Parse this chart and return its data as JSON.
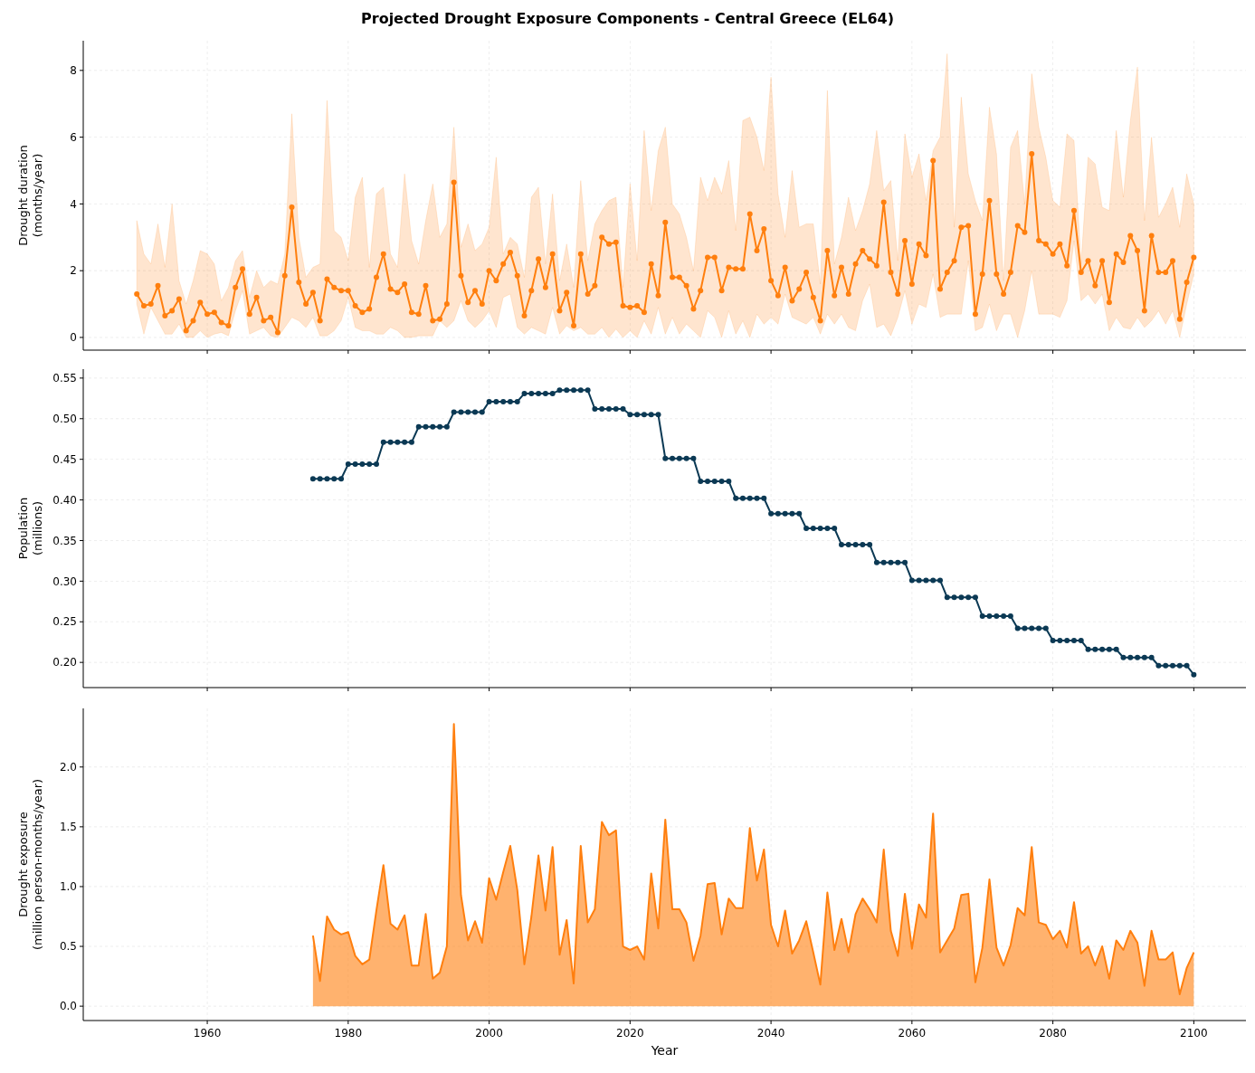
{
  "chart_data": [
    {
      "type": "line",
      "title": "Projected Drought Exposure Components - Central Greece (EL64)",
      "ylabel": "Drought duration\n(months/year)",
      "marker": "circle",
      "grid": true,
      "tick_labels": "y",
      "xlim": [
        1942.4,
        2107.4
      ],
      "xticks": [
        1960,
        1980,
        2000,
        2020,
        2040,
        2060,
        2080,
        2100
      ],
      "ylim": [
        -0.38,
        8.89
      ],
      "yticks": [
        0,
        2,
        4,
        6,
        8
      ],
      "x": [
        1950,
        1951,
        1952,
        1953,
        1954,
        1955,
        1956,
        1957,
        1958,
        1959,
        1960,
        1961,
        1962,
        1963,
        1964,
        1965,
        1966,
        1967,
        1968,
        1969,
        1970,
        1971,
        1972,
        1973,
        1974,
        1975,
        1976,
        1977,
        1978,
        1979,
        1980,
        1981,
        1982,
        1983,
        1984,
        1985,
        1986,
        1987,
        1988,
        1989,
        1990,
        1991,
        1992,
        1993,
        1994,
        1995,
        1996,
        1997,
        1998,
        1999,
        2000,
        2001,
        2002,
        2003,
        2004,
        2005,
        2006,
        2007,
        2008,
        2009,
        2010,
        2011,
        2012,
        2013,
        2014,
        2015,
        2016,
        2017,
        2018,
        2019,
        2020,
        2021,
        2022,
        2023,
        2024,
        2025,
        2026,
        2027,
        2028,
        2029,
        2030,
        2031,
        2032,
        2033,
        2034,
        2035,
        2036,
        2037,
        2038,
        2039,
        2040,
        2041,
        2042,
        2043,
        2044,
        2045,
        2046,
        2047,
        2048,
        2049,
        2050,
        2051,
        2052,
        2053,
        2054,
        2055,
        2056,
        2057,
        2058,
        2059,
        2060,
        2061,
        2062,
        2063,
        2064,
        2065,
        2066,
        2067,
        2068,
        2069,
        2070,
        2071,
        2072,
        2073,
        2074,
        2075,
        2076,
        2077,
        2078,
        2079,
        2080,
        2081,
        2082,
        2083,
        2084,
        2085,
        2086,
        2087,
        2088,
        2089,
        2090,
        2091,
        2092,
        2093,
        2094,
        2095,
        2096,
        2097,
        2098,
        2099,
        2100
      ],
      "series": [
        {
          "color": "#ff7f0e",
          "values": [
            1.3,
            0.95,
            1.0,
            1.55,
            0.65,
            0.8,
            1.15,
            0.2,
            0.5,
            1.05,
            0.7,
            0.75,
            0.45,
            0.35,
            1.5,
            2.05,
            0.7,
            1.2,
            0.5,
            0.6,
            0.15,
            1.85,
            3.9,
            1.65,
            1.0,
            1.35,
            0.5,
            1.75,
            1.5,
            1.4,
            1.4,
            0.95,
            0.75,
            0.85,
            1.8,
            2.5,
            1.45,
            1.35,
            1.6,
            0.75,
            0.7,
            1.55,
            0.5,
            0.55,
            1.0,
            4.65,
            1.85,
            1.05,
            1.4,
            1.0,
            2.0,
            1.7,
            2.2,
            2.55,
            1.85,
            0.65,
            1.4,
            2.35,
            1.5,
            2.5,
            0.8,
            1.35,
            0.35,
            2.5,
            1.3,
            1.55,
            3.0,
            2.8,
            2.85,
            0.95,
            0.9,
            0.95,
            0.75,
            2.2,
            1.25,
            3.45,
            1.8,
            1.8,
            1.55,
            0.85,
            1.4,
            2.4,
            2.4,
            1.4,
            2.1,
            2.05,
            2.05,
            3.7,
            2.6,
            3.25,
            1.7,
            1.25,
            2.1,
            1.1,
            1.45,
            1.95,
            1.2,
            0.5,
            2.6,
            1.25,
            2.1,
            1.3,
            2.2,
            2.6,
            2.35,
            2.15,
            4.05,
            1.95,
            1.3,
            2.9,
            1.6,
            2.8,
            2.45,
            5.3,
            1.45,
            1.95,
            2.3,
            3.3,
            3.35,
            0.7,
            1.9,
            4.1,
            1.9,
            1.3,
            1.95,
            3.35,
            3.15,
            5.5,
            2.9,
            2.8,
            2.5,
            2.8,
            2.15,
            3.8,
            1.95,
            2.3,
            1.55,
            2.3,
            1.05,
            2.5,
            2.25,
            3.05,
            2.6,
            0.8,
            3.05,
            1.95,
            1.95,
            2.3,
            0.55,
            1.65,
            2.4
          ],
          "lower": [
            1.0,
            0.1,
            0.9,
            0.5,
            0.1,
            0.1,
            0.4,
            0.0,
            0.0,
            0.2,
            0.0,
            0.1,
            0.15,
            0.05,
            0.8,
            1.4,
            0.1,
            0.2,
            0.3,
            0.05,
            0.0,
            0.3,
            0.6,
            0.5,
            0.3,
            0.6,
            0.05,
            0.05,
            0.2,
            0.5,
            1.2,
            0.3,
            0.2,
            0.2,
            0.1,
            0.1,
            0.3,
            0.2,
            0.0,
            0.0,
            0.05,
            0.05,
            0.05,
            0.5,
            0.3,
            0.5,
            1.1,
            0.5,
            0.3,
            0.5,
            0.8,
            0.3,
            1.2,
            1.3,
            0.3,
            0.1,
            0.3,
            0.2,
            0.1,
            0.9,
            0.1,
            0.35,
            0.2,
            0.3,
            0.1,
            0.1,
            0.3,
            0.0,
            0.25,
            0.0,
            0.2,
            0.0,
            0.5,
            0.1,
            0.9,
            0.1,
            0.6,
            0.1,
            0.4,
            0.2,
            0.0,
            0.8,
            0.6,
            0.0,
            0.8,
            0.1,
            0.5,
            0.0,
            0.7,
            0.4,
            0.6,
            0.4,
            1.3,
            0.6,
            0.5,
            0.4,
            0.6,
            0.1,
            0.7,
            0.4,
            0.7,
            0.3,
            0.2,
            1.1,
            1.6,
            0.3,
            0.4,
            0.05,
            0.6,
            1.4,
            0.4,
            1.0,
            0.9,
            1.9,
            0.6,
            0.7,
            0.7,
            0.7,
            2.3,
            0.2,
            0.3,
            1.0,
            0.2,
            0.7,
            0.7,
            0.0,
            0.8,
            2.0,
            0.7,
            0.7,
            0.7,
            0.6,
            1.1,
            2.9,
            1.1,
            1.3,
            1.0,
            1.3,
            0.2,
            0.6,
            0.3,
            0.25,
            0.6,
            0.3,
            0.5,
            0.8,
            0.4,
            0.8,
            0.0,
            1.0,
            1.9
          ],
          "upper": [
            3.5,
            2.5,
            2.2,
            3.4,
            2.1,
            4.0,
            1.7,
            1.0,
            1.7,
            2.6,
            2.5,
            2.2,
            1.1,
            1.5,
            2.3,
            2.6,
            1.2,
            2.0,
            1.5,
            1.7,
            1.6,
            2.5,
            6.7,
            3.0,
            1.8,
            2.1,
            2.2,
            7.1,
            3.2,
            3.0,
            2.3,
            4.2,
            4.8,
            2.1,
            4.3,
            4.5,
            2.5,
            2.1,
            4.9,
            2.9,
            2.2,
            3.5,
            4.6,
            3.0,
            3.4,
            6.3,
            2.7,
            3.4,
            2.6,
            2.8,
            3.3,
            5.4,
            2.5,
            3.0,
            2.8,
            1.8,
            4.2,
            4.5,
            2.2,
            4.3,
            1.7,
            2.8,
            1.5,
            4.7,
            2.3,
            3.4,
            3.8,
            4.1,
            4.2,
            1.5,
            4.6,
            2.3,
            6.2,
            3.8,
            5.6,
            6.3,
            4.0,
            3.7,
            3.0,
            2.0,
            4.8,
            4.1,
            4.8,
            4.3,
            5.3,
            3.2,
            6.5,
            6.6,
            6.0,
            5.0,
            7.8,
            4.3,
            3.0,
            5.0,
            3.3,
            3.4,
            3.4,
            1.6,
            7.4,
            2.2,
            3.0,
            4.2,
            3.2,
            3.8,
            4.6,
            6.2,
            4.4,
            4.7,
            2.3,
            6.1,
            4.8,
            5.5,
            4.1,
            5.6,
            6.0,
            8.5,
            3.3,
            7.2,
            4.9,
            4.1,
            3.5,
            6.9,
            5.5,
            1.7,
            5.7,
            6.2,
            4.0,
            7.9,
            6.3,
            5.4,
            4.1,
            3.9,
            6.1,
            5.9,
            2.2,
            5.4,
            5.2,
            3.9,
            3.8,
            6.2,
            4.2,
            6.5,
            8.1,
            3.5,
            6.0,
            3.6,
            4.0,
            4.5,
            3.3,
            4.9,
            4.0
          ]
        }
      ]
    },
    {
      "type": "line",
      "ylabel": "Population\n(millions)",
      "marker": "circle",
      "grid": true,
      "tick_labels": "y",
      "xlim": [
        1942.4,
        2107.4
      ],
      "xticks": [
        1960,
        1980,
        2000,
        2020,
        2040,
        2060,
        2080,
        2100
      ],
      "ylim": [
        0.169,
        0.561
      ],
      "yticks": [
        {
          "value": 0.2,
          "label": "0.20"
        },
        0.25,
        {
          "value": 0.3,
          "label": "0.30"
        },
        0.35,
        {
          "value": 0.4,
          "label": "0.40"
        },
        0.45,
        {
          "value": 0.5,
          "label": "0.50"
        },
        0.55
      ],
      "x": [
        1975,
        1976,
        1977,
        1978,
        1979,
        1980,
        1981,
        1982,
        1983,
        1984,
        1985,
        1986,
        1987,
        1988,
        1989,
        1990,
        1991,
        1992,
        1993,
        1994,
        1995,
        1996,
        1997,
        1998,
        1999,
        2000,
        2001,
        2002,
        2003,
        2004,
        2005,
        2006,
        2007,
        2008,
        2009,
        2010,
        2011,
        2012,
        2013,
        2014,
        2015,
        2016,
        2017,
        2018,
        2019,
        2020,
        2021,
        2022,
        2023,
        2024,
        2025,
        2026,
        2027,
        2028,
        2029,
        2030,
        2031,
        2032,
        2033,
        2034,
        2035,
        2036,
        2037,
        2038,
        2039,
        2040,
        2041,
        2042,
        2043,
        2044,
        2045,
        2046,
        2047,
        2048,
        2049,
        2050,
        2051,
        2052,
        2053,
        2054,
        2055,
        2056,
        2057,
        2058,
        2059,
        2060,
        2061,
        2062,
        2063,
        2064,
        2065,
        2066,
        2067,
        2068,
        2069,
        2070,
        2071,
        2072,
        2073,
        2074,
        2075,
        2076,
        2077,
        2078,
        2079,
        2080,
        2081,
        2082,
        2083,
        2084,
        2085,
        2086,
        2087,
        2088,
        2089,
        2090,
        2091,
        2092,
        2093,
        2094,
        2095,
        2096,
        2097,
        2098,
        2099,
        2100
      ],
      "series": [
        {
          "color": "#0b3954",
          "values": [
            0.426,
            0.426,
            0.426,
            0.426,
            0.426,
            0.444,
            0.444,
            0.444,
            0.444,
            0.444,
            0.471,
            0.471,
            0.471,
            0.471,
            0.471,
            0.49,
            0.49,
            0.49,
            0.49,
            0.49,
            0.508,
            0.508,
            0.508,
            0.508,
            0.508,
            0.521,
            0.521,
            0.521,
            0.521,
            0.521,
            0.531,
            0.531,
            0.531,
            0.531,
            0.531,
            0.535,
            0.535,
            0.535,
            0.535,
            0.535,
            0.512,
            0.512,
            0.512,
            0.512,
            0.512,
            0.505,
            0.505,
            0.505,
            0.505,
            0.505,
            0.451,
            0.451,
            0.451,
            0.451,
            0.451,
            0.423,
            0.423,
            0.423,
            0.423,
            0.423,
            0.402,
            0.402,
            0.402,
            0.402,
            0.402,
            0.383,
            0.383,
            0.383,
            0.383,
            0.383,
            0.365,
            0.365,
            0.365,
            0.365,
            0.365,
            0.345,
            0.345,
            0.345,
            0.345,
            0.345,
            0.323,
            0.323,
            0.323,
            0.323,
            0.323,
            0.301,
            0.301,
            0.301,
            0.301,
            0.301,
            0.28,
            0.28,
            0.28,
            0.28,
            0.28,
            0.257,
            0.257,
            0.257,
            0.257,
            0.257,
            0.242,
            0.242,
            0.242,
            0.242,
            0.242,
            0.227,
            0.227,
            0.227,
            0.227,
            0.227,
            0.216,
            0.216,
            0.216,
            0.216,
            0.216,
            0.206,
            0.206,
            0.206,
            0.206,
            0.206,
            0.196,
            0.196,
            0.196,
            0.196,
            0.196,
            0.185
          ]
        }
      ]
    },
    {
      "type": "area",
      "xlabel": "Year",
      "ylabel": "Drought exposure\n(million person-months/year)",
      "grid": true,
      "xlim": [
        1942.4,
        2107.4
      ],
      "xticks": [
        1960,
        1980,
        2000,
        2020,
        2040,
        2060,
        2080,
        2100
      ],
      "ylim": [
        -0.12,
        2.49
      ],
      "yticks": [
        {
          "value": 0,
          "label": "0.0"
        },
        {
          "value": 0.5,
          "label": "0.5"
        },
        {
          "value": 1,
          "label": "1.0"
        },
        {
          "value": 1.5,
          "label": "1.5"
        },
        {
          "value": 2,
          "label": "2.0"
        }
      ],
      "x": [
        1975,
        1976,
        1977,
        1978,
        1979,
        1980,
        1981,
        1982,
        1983,
        1984,
        1985,
        1986,
        1987,
        1988,
        1989,
        1990,
        1991,
        1992,
        1993,
        1994,
        1995,
        1996,
        1997,
        1998,
        1999,
        2000,
        2001,
        2002,
        2003,
        2004,
        2005,
        2006,
        2007,
        2008,
        2009,
        2010,
        2011,
        2012,
        2013,
        2014,
        2015,
        2016,
        2017,
        2018,
        2019,
        2020,
        2021,
        2022,
        2023,
        2024,
        2025,
        2026,
        2027,
        2028,
        2029,
        2030,
        2031,
        2032,
        2033,
        2034,
        2035,
        2036,
        2037,
        2038,
        2039,
        2040,
        2041,
        2042,
        2043,
        2044,
        2045,
        2046,
        2047,
        2048,
        2049,
        2050,
        2051,
        2052,
        2053,
        2054,
        2055,
        2056,
        2057,
        2058,
        2059,
        2060,
        2061,
        2062,
        2063,
        2064,
        2065,
        2066,
        2067,
        2068,
        2069,
        2070,
        2071,
        2072,
        2073,
        2074,
        2075,
        2076,
        2077,
        2078,
        2079,
        2080,
        2081,
        2082,
        2083,
        2084,
        2085,
        2086,
        2087,
        2088,
        2089,
        2090,
        2091,
        2092,
        2093,
        2094,
        2095,
        2096,
        2097,
        2098,
        2099,
        2100
      ],
      "series": [
        {
          "color": "#ff7f0e",
          "values": [
            0.59,
            0.21,
            0.75,
            0.64,
            0.6,
            0.62,
            0.42,
            0.35,
            0.39,
            0.8,
            1.18,
            0.69,
            0.64,
            0.76,
            0.34,
            0.34,
            0.77,
            0.23,
            0.28,
            0.5,
            2.36,
            0.93,
            0.55,
            0.71,
            0.53,
            1.07,
            0.89,
            1.12,
            1.34,
            0.97,
            0.35,
            0.75,
            1.26,
            0.8,
            1.33,
            0.43,
            0.72,
            0.19,
            1.34,
            0.7,
            0.81,
            1.54,
            1.43,
            1.47,
            0.5,
            0.47,
            0.5,
            0.39,
            1.11,
            0.65,
            1.56,
            0.81,
            0.81,
            0.7,
            0.38,
            0.59,
            1.02,
            1.03,
            0.6,
            0.9,
            0.82,
            0.82,
            1.49,
            1.05,
            1.31,
            0.68,
            0.5,
            0.8,
            0.44,
            0.55,
            0.71,
            0.45,
            0.18,
            0.95,
            0.47,
            0.73,
            0.45,
            0.77,
            0.9,
            0.81,
            0.7,
            1.31,
            0.63,
            0.42,
            0.94,
            0.48,
            0.85,
            0.74,
            1.61,
            0.45,
            0.55,
            0.65,
            0.93,
            0.94,
            0.2,
            0.49,
            1.06,
            0.49,
            0.34,
            0.51,
            0.82,
            0.76,
            1.33,
            0.7,
            0.68,
            0.56,
            0.63,
            0.49,
            0.87,
            0.44,
            0.5,
            0.34,
            0.5,
            0.23,
            0.55,
            0.47,
            0.63,
            0.53,
            0.17,
            0.63,
            0.39,
            0.39,
            0.45,
            0.1,
            0.32,
            0.45
          ]
        }
      ]
    }
  ]
}
